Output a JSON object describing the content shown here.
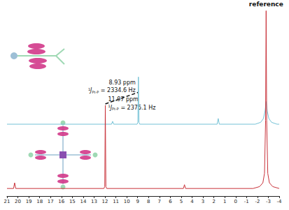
{
  "chart_data": {
    "type": "line",
    "xlim": [
      21,
      -4
    ],
    "xticks": [
      21,
      20,
      19,
      18,
      17,
      16,
      15,
      14,
      13,
      12,
      11,
      10,
      9,
      8,
      7,
      6,
      5,
      4,
      3,
      2,
      1,
      0,
      -1,
      -2,
      -3,
      -4
    ],
    "ylim": [
      0,
      100
    ],
    "tick_labels": "x",
    "grid": false,
    "series": [
      {
        "color": "#74c2d6",
        "x": [
          21,
          11.4,
          11.3,
          11.2,
          9.05,
          8.98,
          8.93,
          8.88,
          8.81,
          1.7,
          1.6,
          1.5,
          -1.8,
          -2.3,
          -2.55,
          -2.7,
          -2.8,
          -2.9,
          -3.05,
          -3.3,
          -3.8,
          -4
        ],
        "values": [
          38,
          38,
          39.5,
          38,
          38,
          39,
          63,
          39,
          38,
          38,
          41,
          38,
          38,
          39,
          41,
          45,
          50,
          45,
          41,
          39,
          38,
          38
        ]
      },
      {
        "color": "#c9323a",
        "x": [
          21,
          20.4,
          20.3,
          20.2,
          12.1,
          12.02,
          11.97,
          11.92,
          11.84,
          4.8,
          4.7,
          4.6,
          -1.6,
          -2.2,
          -2.5,
          -2.65,
          -2.75,
          -2.8,
          -2.85,
          -2.95,
          -3.1,
          -3.4,
          -4
        ],
        "values": [
          4,
          4,
          7,
          4,
          4,
          5,
          48,
          5,
          4,
          4,
          6,
          4,
          4,
          5,
          7,
          12,
          40,
          98,
          40,
          12,
          7,
          5,
          4
        ]
      }
    ],
    "annotations": [
      {
        "series": 0,
        "x": 8.93,
        "text": "8.93 ppm",
        "coupling": {
          "sup": "1",
          "symbol": "J",
          "sub": "Pt-P",
          "text": " = 2334.6 Hz"
        }
      },
      {
        "series": 1,
        "x": 11.97,
        "text": "11.97 ppm",
        "coupling": {
          "sup": "1",
          "symbol": "J",
          "sub": "Pt-P",
          "text": " = 2375.1 Hz"
        }
      },
      {
        "x": -2.8,
        "text": "reference"
      }
    ]
  }
}
